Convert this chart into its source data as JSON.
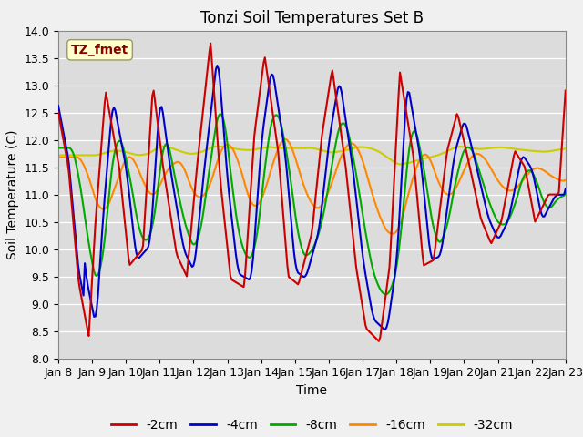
{
  "title": "Tonzi Soil Temperatures Set B",
  "xlabel": "Time",
  "ylabel": "Soil Temperature (C)",
  "ylim": [
    8.0,
    14.0
  ],
  "yticks": [
    8.0,
    8.5,
    9.0,
    9.5,
    10.0,
    10.5,
    11.0,
    11.5,
    12.0,
    12.5,
    13.0,
    13.5,
    14.0
  ],
  "xtick_labels": [
    "Jan 8",
    "Jan 9",
    "Jan 10",
    "Jan 11",
    "Jan 12",
    "Jan 13",
    "Jan 14",
    "Jan 15",
    "Jan 16",
    "Jan 17",
    "Jan 18",
    "Jan 19",
    "Jan 20",
    "Jan 21",
    "Jan 22",
    "Jan 23"
  ],
  "series_colors": [
    "#cc0000",
    "#0000cc",
    "#00aa00",
    "#ff8800",
    "#cccc00"
  ],
  "series_labels": [
    "-2cm",
    "-4cm",
    "-8cm",
    "-16cm",
    "-32cm"
  ],
  "annotation_text": "TZ_fmet",
  "annotation_color": "#880000",
  "annotation_bg": "#ffffcc",
  "bg_color": "#dcdcdc",
  "fig_bg_color": "#f0f0f0",
  "title_fontsize": 12,
  "axis_label_fontsize": 10,
  "tick_fontsize": 9,
  "legend_fontsize": 10,
  "grid_color": "#ffffff",
  "linewidth": 1.5
}
